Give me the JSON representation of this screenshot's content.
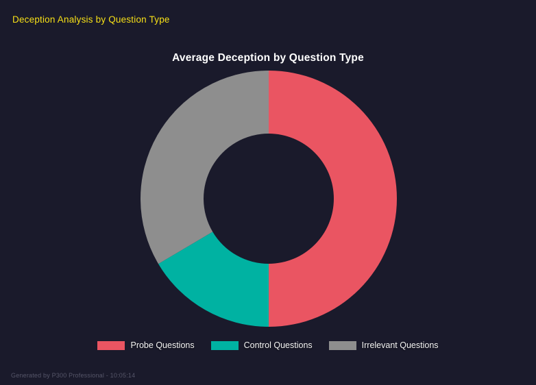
{
  "page": {
    "header": "Deception Analysis by Question Type",
    "footer": "Generated by P300 Professional - 10:05:14",
    "background": "#1a1a2b",
    "header_color": "#f7e017"
  },
  "chart_data": {
    "type": "pie",
    "variant": "doughnut",
    "title": "Average Deception by Question Type",
    "categories": [
      "Probe Questions",
      "Control Questions",
      "Irrelevant Questions"
    ],
    "values": [
      50,
      16.5,
      33.5
    ],
    "unit": "% share (estimated from arc angles)",
    "colors": [
      "#ea5562",
      "#00b2a2",
      "#8e8e8e"
    ],
    "start_angle_deg": 0,
    "direction": "clockwise",
    "cutout_ratio": 0.51,
    "legend_position": "bottom",
    "title_color": "#ffffff",
    "legend_text_color": "#f5f5f5"
  }
}
